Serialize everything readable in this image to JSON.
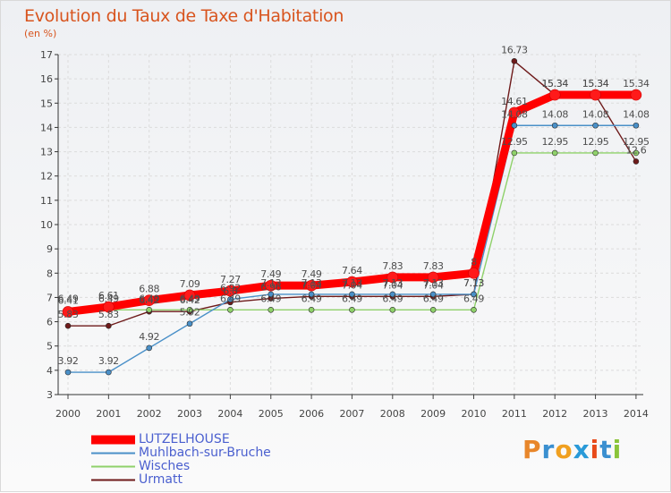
{
  "chart_data": {
    "type": "line",
    "title": "Evolution du Taux de Taxe d'Habitation",
    "subtitle": "(en %)",
    "categories": [
      "2000",
      "2001",
      "2002",
      "2003",
      "2004",
      "2005",
      "2006",
      "2007",
      "2008",
      "2009",
      "2010",
      "2011",
      "2012",
      "2013",
      "2014"
    ],
    "ylim": [
      3,
      17
    ],
    "yticks": [
      3,
      4,
      5,
      6,
      7,
      8,
      9,
      10,
      11,
      12,
      13,
      14,
      15,
      16,
      17
    ],
    "series": [
      {
        "name": "LUTZELHOUSE",
        "color": "#ff0000",
        "values": [
          6.41,
          6.61,
          6.88,
          7.09,
          7.27,
          7.49,
          7.49,
          7.64,
          7.83,
          7.83,
          8.0,
          14.61,
          15.34,
          15.34,
          15.34
        ],
        "labels": [
          "6.41",
          "6.61",
          "6.88",
          "7.09",
          "7.27",
          "7.49",
          "7.49",
          "7.64",
          "7.83",
          "7.83",
          "8",
          "14.61",
          "15.34",
          "15.34",
          "15.34"
        ]
      },
      {
        "name": "Muhlbach-sur-Bruche",
        "color": "#4a90c8",
        "values": [
          3.92,
          3.92,
          4.92,
          5.92,
          6.92,
          7.13,
          7.13,
          7.13,
          7.13,
          7.13,
          7.13,
          14.08,
          14.08,
          14.08,
          14.08
        ],
        "labels": [
          "3.92",
          "3.92",
          "4.92",
          "5.92",
          "6.92",
          "7.13",
          "7.13",
          "7.13",
          "7.13",
          "7.13",
          "7.13",
          "14.08",
          "14.08",
          "14.08",
          "14.08"
        ]
      },
      {
        "name": "Wisches",
        "color": "#8fd16a",
        "values": [
          6.49,
          6.49,
          6.49,
          6.49,
          6.49,
          6.49,
          6.49,
          6.49,
          6.49,
          6.49,
          6.49,
          12.95,
          12.95,
          12.95,
          12.95
        ],
        "labels": [
          "6.49",
          "6.49",
          "6.49",
          "6.49",
          "6.49",
          "6.49",
          "6.49",
          "6.49",
          "6.49",
          "6.49",
          "6.49",
          "12.95",
          "12.95",
          "12.95",
          "12.95"
        ]
      },
      {
        "name": "Urmatt",
        "color": "#6e1a1a",
        "values": [
          5.83,
          5.83,
          6.42,
          6.42,
          6.8,
          6.96,
          7.04,
          7.04,
          7.04,
          7.04,
          7.13,
          16.73,
          15.34,
          15.34,
          12.6
        ],
        "labels": [
          "5.83",
          "5.83",
          "6.42",
          "6.42",
          "6.8",
          "6.96",
          "7.04",
          "7.04",
          "7.04",
          "7.04",
          "7.13",
          "16.73",
          "15.34",
          "15.34",
          "12.6"
        ]
      }
    ],
    "legend_position": "bottom-left"
  },
  "brand": {
    "text": "Proxiti",
    "letter_colors": [
      "#e8862a",
      "#3a8fd0",
      "#f0a020",
      "#2a9ad8",
      "#e84a1a",
      "#3a8fd0",
      "#8ac43a"
    ]
  }
}
